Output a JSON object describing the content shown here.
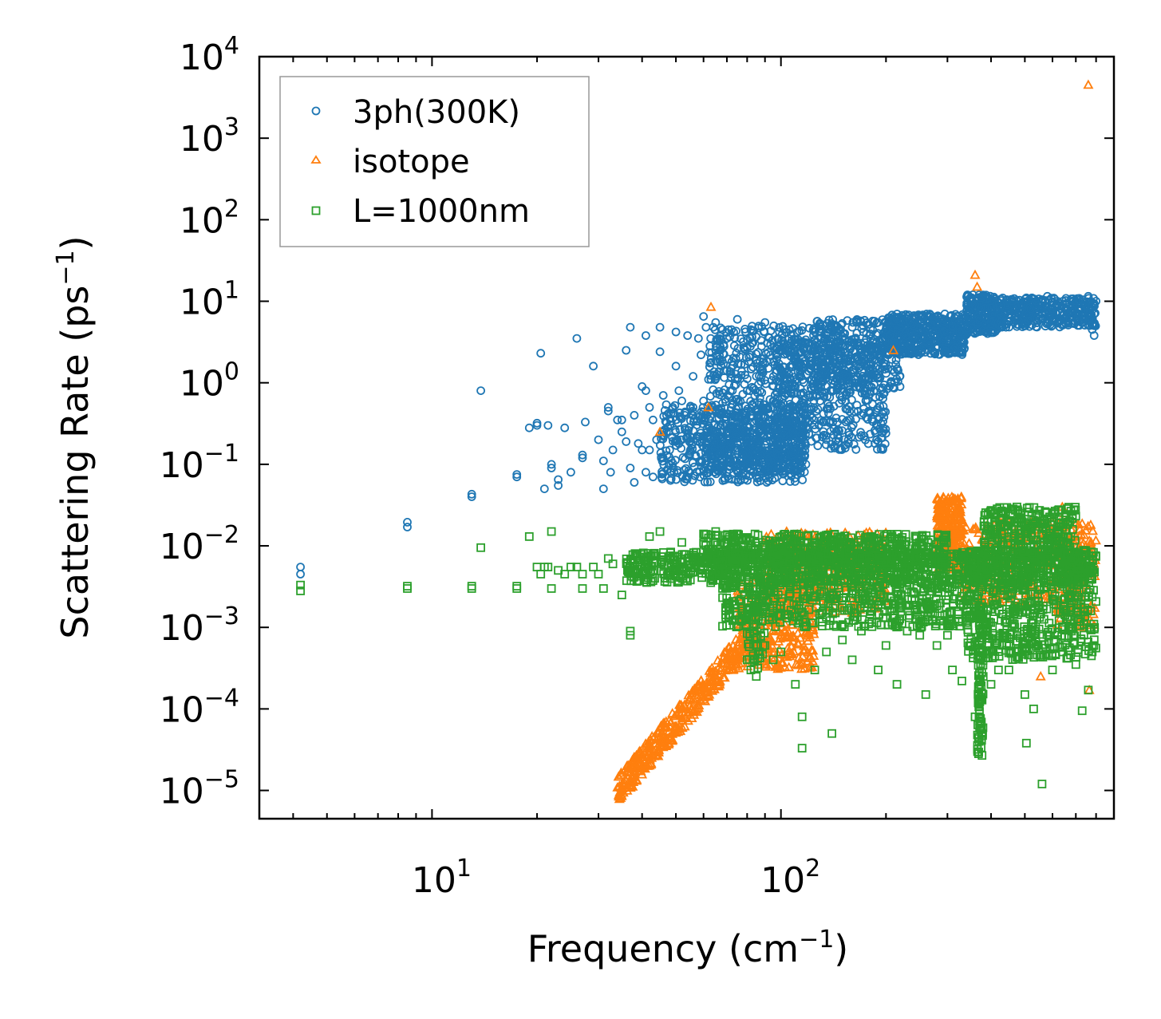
{
  "chart_data": {
    "type": "scatter",
    "title": "",
    "xlabel": "Frequency (cm",
    "xlabel_sup": "−1",
    "xlabel_tail": ")",
    "ylabel": "Scattering Rate (ps",
    "ylabel_sup": "−1",
    "ylabel_tail": ")",
    "xscale": "log",
    "yscale": "log",
    "xlim": [
      3.2,
      900
    ],
    "ylim": [
      4.5e-06,
      10000.0
    ],
    "x_ticks": [
      {
        "value": 10,
        "base": "10",
        "exp": "1"
      },
      {
        "value": 100,
        "base": "10",
        "exp": "2"
      }
    ],
    "y_ticks": [
      {
        "value": 1e-05,
        "base": "10",
        "exp": "−5"
      },
      {
        "value": 0.0001,
        "base": "10",
        "exp": "−4"
      },
      {
        "value": 0.001,
        "base": "10",
        "exp": "−3"
      },
      {
        "value": 0.01,
        "base": "10",
        "exp": "−2"
      },
      {
        "value": 0.1,
        "base": "10",
        "exp": "−1"
      },
      {
        "value": 1,
        "base": "10",
        "exp": "0"
      },
      {
        "value": 10,
        "base": "10",
        "exp": "1"
      },
      {
        "value": 100,
        "base": "10",
        "exp": "2"
      },
      {
        "value": 1000,
        "base": "10",
        "exp": "3"
      },
      {
        "value": 10000,
        "base": "10",
        "exp": "4"
      }
    ],
    "legend_position": "upper-left",
    "series": [
      {
        "name": "3ph(300K)",
        "marker": "circle",
        "color": "#1f77b4",
        "points": [
          [
            4.2,
            0.0055
          ],
          [
            4.2,
            0.0045
          ],
          [
            8.5,
            0.0195
          ],
          [
            8.5,
            0.017
          ],
          [
            13,
            0.043
          ],
          [
            13,
            0.04
          ],
          [
            13.8,
            0.8
          ],
          [
            17.5,
            0.075
          ],
          [
            17.5,
            0.07
          ],
          [
            19,
            0.28
          ],
          [
            20,
            0.32
          ],
          [
            20,
            0.3
          ],
          [
            20.5,
            2.3
          ],
          [
            21,
            0.05
          ],
          [
            21.5,
            0.3
          ],
          [
            22,
            0.1
          ],
          [
            22,
            0.09
          ],
          [
            23,
            0.065
          ],
          [
            23,
            0.055
          ],
          [
            24,
            0.28
          ],
          [
            25,
            0.08
          ],
          [
            26,
            3.5
          ],
          [
            27,
            0.13
          ],
          [
            27,
            0.12
          ],
          [
            27.5,
            0.33
          ],
          [
            29,
            1.6
          ],
          [
            30,
            0.2
          ],
          [
            31,
            0.11
          ],
          [
            31,
            0.05
          ],
          [
            32,
            0.45
          ],
          [
            32,
            0.5
          ],
          [
            32.5,
            0.08
          ],
          [
            33,
            0.15
          ],
          [
            34,
            0.35
          ],
          [
            35,
            0.35
          ],
          [
            35,
            0.25
          ],
          [
            36,
            2.5
          ],
          [
            36,
            0.19
          ],
          [
            37,
            0.09
          ],
          [
            37,
            4.8
          ],
          [
            38,
            0.4
          ],
          [
            38,
            0.06
          ],
          [
            39,
            0.18
          ],
          [
            40,
            0.9
          ],
          [
            40,
            0.15
          ],
          [
            41,
            0.8
          ],
          [
            41,
            0.08
          ],
          [
            41,
            3.8
          ],
          [
            42,
            0.5
          ],
          [
            42,
            0.15
          ],
          [
            43,
            0.35
          ],
          [
            43,
            0.07
          ],
          [
            44,
            0.2
          ],
          [
            45,
            2.4
          ],
          [
            45,
            4.8
          ],
          [
            46,
            0.12
          ],
          [
            46,
            0.7
          ],
          [
            47,
            0.25
          ],
          [
            47,
            0.4
          ],
          [
            48,
            0.15
          ],
          [
            49,
            0.5
          ],
          [
            50,
            4.2
          ],
          [
            50,
            1.6
          ],
          [
            51,
            0.8
          ],
          [
            52,
            0.6
          ],
          [
            52,
            0.2
          ],
          [
            53,
            0.4
          ],
          [
            54,
            3.8
          ],
          [
            55,
            0.15
          ],
          [
            56,
            1.2
          ],
          [
            56,
            0.5
          ],
          [
            58,
            3.5
          ],
          [
            58,
            0.22
          ],
          [
            59,
            2.2
          ],
          [
            60,
            0.6
          ],
          [
            60,
            6.5
          ],
          [
            61,
            4.8
          ],
          [
            62,
            0.3
          ],
          [
            63,
            1.1
          ],
          [
            65,
            2.5
          ],
          [
            65,
            5.5
          ],
          [
            67,
            1.8
          ],
          [
            68,
            4.5
          ],
          [
            70,
            0.25
          ],
          [
            70,
            3.5
          ],
          [
            72,
            1.5
          ],
          [
            72,
            0.35
          ],
          [
            75,
            6
          ],
          [
            75,
            1.1
          ],
          [
            78,
            3.2
          ],
          [
            80,
            0.8
          ],
          [
            82,
            4.5
          ],
          [
            85,
            1.2
          ],
          [
            85,
            0.2
          ],
          [
            88,
            2.8
          ],
          [
            90,
            5.5
          ],
          [
            92,
            1.5
          ],
          [
            95,
            0.6
          ],
          [
            98,
            3.5
          ],
          [
            100,
            1.2
          ],
          [
            100,
            0.3
          ],
          [
            102,
            4.5
          ],
          [
            105,
            2.5
          ],
          [
            108,
            0.5
          ],
          [
            110,
            0.9
          ],
          [
            115,
            3.2
          ],
          [
            125,
            4.2
          ],
          [
            135,
            3.8
          ],
          [
            150,
            1.6
          ],
          [
            160,
            4.8
          ],
          [
            175,
            0.6
          ],
          [
            180,
            1.5
          ],
          [
            190,
            5.5
          ],
          [
            200,
            4.5
          ],
          [
            215,
            6
          ],
          [
            230,
            6.5
          ],
          [
            240,
            5
          ],
          [
            255,
            6.8
          ],
          [
            270,
            5.2
          ],
          [
            290,
            5.5
          ],
          [
            310,
            5
          ],
          [
            325,
            4.2
          ],
          [
            335,
            2.6
          ],
          [
            345,
            7.5
          ],
          [
            355,
            12
          ],
          [
            360,
            9
          ],
          [
            375,
            11
          ],
          [
            390,
            6
          ],
          [
            400,
            5.5
          ],
          [
            415,
            9
          ],
          [
            430,
            5
          ],
          [
            445,
            9.5
          ],
          [
            460,
            10
          ],
          [
            475,
            6
          ],
          [
            490,
            9
          ],
          [
            505,
            11
          ],
          [
            520,
            8
          ],
          [
            540,
            10
          ],
          [
            560,
            7
          ],
          [
            580,
            11.5
          ],
          [
            600,
            8
          ],
          [
            620,
            10
          ],
          [
            650,
            6
          ],
          [
            700,
            10
          ],
          [
            760,
            11.5
          ],
          [
            780,
            4.5
          ],
          [
            790,
            3.8
          ],
          [
            800,
            10
          ]
        ],
        "bands": [
          {
            "xmin": 45,
            "xmax": 118,
            "ymin": 0.06,
            "ymax": 0.55,
            "count": 500
          },
          {
            "xmin": 60,
            "xmax": 118,
            "ymin": 0.08,
            "ymax": 0.3,
            "count": 350
          },
          {
            "xmin": 62,
            "xmax": 118,
            "ymin": 0.3,
            "ymax": 5,
            "count": 330
          },
          {
            "xmin": 95,
            "xmax": 200,
            "ymin": 0.15,
            "ymax": 3.5,
            "count": 450
          },
          {
            "xmin": 120,
            "xmax": 220,
            "ymin": 0.8,
            "ymax": 6,
            "count": 350
          },
          {
            "xmin": 200,
            "xmax": 340,
            "ymin": 2.2,
            "ymax": 7,
            "count": 450
          },
          {
            "xmin": 340,
            "xmax": 420,
            "ymin": 4.0,
            "ymax": 12,
            "count": 200
          },
          {
            "xmin": 420,
            "xmax": 800,
            "ymin": 4.8,
            "ymax": 11,
            "count": 350
          }
        ]
      },
      {
        "name": "isotope",
        "marker": "triangle",
        "color": "#ff7f0e",
        "points": [
          [
            45,
            0.25
          ],
          [
            62,
            0.5
          ],
          [
            63,
            8.5
          ],
          [
            210,
            2.5
          ],
          [
            360,
            21
          ],
          [
            365,
            15
          ],
          [
            555,
            0.00025
          ],
          [
            600,
            0.004
          ],
          [
            640,
            0.03
          ],
          [
            650,
            0.025
          ],
          [
            760,
            4500
          ],
          [
            765,
            0.00017
          ]
        ],
        "bands": [
          {
            "xmin": 34,
            "xmax": 80,
            "ymin": 1e-05,
            "ymax": 0.0007,
            "count": 350,
            "trend": true
          },
          {
            "xmin": 75,
            "xmax": 125,
            "ymin": 0.0003,
            "ymax": 0.004,
            "count": 300
          },
          {
            "xmin": 90,
            "xmax": 200,
            "ymin": 0.0015,
            "ymax": 0.015,
            "count": 350
          },
          {
            "xmin": 280,
            "xmax": 330,
            "ymin": 0.005,
            "ymax": 0.04,
            "count": 280
          },
          {
            "xmin": 330,
            "xmax": 620,
            "ymin": 0.002,
            "ymax": 0.02,
            "count": 250
          },
          {
            "xmin": 620,
            "xmax": 800,
            "ymin": 0.001,
            "ymax": 0.02,
            "count": 150
          }
        ]
      },
      {
        "name": "L=1000nm",
        "marker": "square",
        "color": "#2ca02c",
        "points": [
          [
            4.2,
            0.0033
          ],
          [
            4.2,
            0.0028
          ],
          [
            8.5,
            0.0032
          ],
          [
            8.5,
            0.003
          ],
          [
            13,
            0.0032
          ],
          [
            13,
            0.003
          ],
          [
            13.8,
            0.0095
          ],
          [
            17.5,
            0.0032
          ],
          [
            17.5,
            0.003
          ],
          [
            19,
            0.013
          ],
          [
            20,
            0.0055
          ],
          [
            20.5,
            0.0045
          ],
          [
            21,
            0.0055
          ],
          [
            21.5,
            0.0055
          ],
          [
            22,
            0.003
          ],
          [
            22,
            0.015
          ],
          [
            23,
            0.005
          ],
          [
            24,
            0.0045
          ],
          [
            25,
            0.0055
          ],
          [
            26,
            0.0055
          ],
          [
            27,
            0.0045
          ],
          [
            27,
            0.003
          ],
          [
            29,
            0.0055
          ],
          [
            30,
            0.0045
          ],
          [
            31,
            0.003
          ],
          [
            32,
            0.007
          ],
          [
            33,
            0.006
          ],
          [
            35,
            0.0025
          ],
          [
            37,
            0.0009
          ],
          [
            37,
            0.0008
          ],
          [
            40,
            0.0055
          ],
          [
            42,
            0.013
          ],
          [
            45,
            0.015
          ],
          [
            48,
            0.007
          ],
          [
            52,
            0.011
          ],
          [
            55,
            0.005
          ],
          [
            60,
            0.014
          ],
          [
            65,
            0.015
          ],
          [
            70,
            0.012
          ],
          [
            75,
            0.014
          ],
          [
            80,
            0.0004
          ],
          [
            82,
            0.0003
          ],
          [
            85,
            0.00025
          ],
          [
            90,
            0.0006
          ],
          [
            95,
            0.0004
          ],
          [
            100,
            0.0005
          ],
          [
            110,
            0.0002
          ],
          [
            115,
            8e-05
          ],
          [
            115,
            3.3e-05
          ],
          [
            125,
            0.0003
          ],
          [
            135,
            0.0005
          ],
          [
            140,
            5e-05
          ],
          [
            150,
            0.0007
          ],
          [
            160,
            0.0004
          ],
          [
            170,
            0.0009
          ],
          [
            190,
            0.0003
          ],
          [
            200,
            0.0006
          ],
          [
            215,
            0.0002
          ],
          [
            230,
            0.0009
          ],
          [
            250,
            0.0008
          ],
          [
            260,
            0.00015
          ],
          [
            280,
            0.0006
          ],
          [
            300,
            0.0008
          ],
          [
            310,
            0.0003
          ],
          [
            330,
            0.00022
          ],
          [
            350,
            0.0006
          ],
          [
            360,
            8e-05
          ],
          [
            370,
            4e-05
          ],
          [
            380,
            0.00025
          ],
          [
            400,
            0.0002
          ],
          [
            420,
            0.0003
          ],
          [
            450,
            0.0003
          ],
          [
            480,
            0.0005
          ],
          [
            500,
            0.00015
          ],
          [
            505,
            3.8e-05
          ],
          [
            530,
            0.0001
          ],
          [
            560,
            1.2e-05
          ],
          [
            600,
            0.0003
          ],
          [
            640,
            0.0005
          ],
          [
            680,
            0.0009
          ],
          [
            700,
            0.00035
          ],
          [
            730,
            9.5e-05
          ],
          [
            760,
            0.00017
          ],
          [
            780,
            0.0005
          ]
        ],
        "bands": [
          {
            "xmin": 36,
            "xmax": 780,
            "ymin": 0.0035,
            "ymax": 0.0085,
            "count": 1100
          },
          {
            "xmin": 60,
            "xmax": 300,
            "ymin": 0.006,
            "ymax": 0.014,
            "count": 500
          },
          {
            "xmin": 68,
            "xmax": 345,
            "ymin": 0.001,
            "ymax": 0.004,
            "count": 500
          },
          {
            "xmin": 340,
            "xmax": 800,
            "ymin": 0.0004,
            "ymax": 0.009,
            "count": 600
          },
          {
            "xmin": 380,
            "xmax": 700,
            "ymin": 0.008,
            "ymax": 0.03,
            "count": 260
          },
          {
            "xmin": 365,
            "xmax": 380,
            "ymin": 2.5e-05,
            "ymax": 0.002,
            "count": 90
          },
          {
            "xmin": 80,
            "xmax": 90,
            "ymin": 0.0003,
            "ymax": 0.003,
            "count": 60
          }
        ]
      }
    ]
  }
}
